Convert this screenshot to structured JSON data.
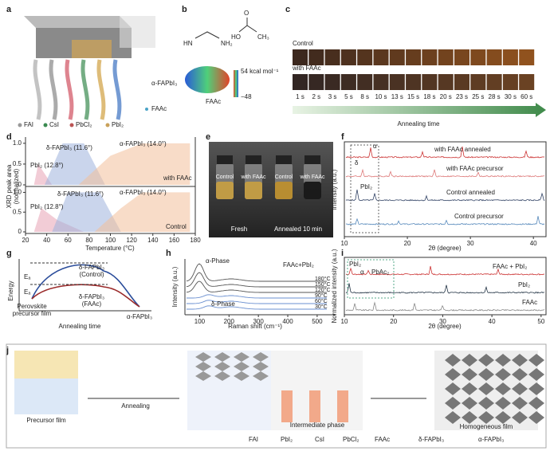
{
  "panel_labels": [
    "a",
    "b",
    "c",
    "d",
    "e",
    "f",
    "g",
    "h",
    "i",
    "j"
  ],
  "a": {
    "legend_top": [
      "α-FAPbI₃",
      "FAAc"
    ],
    "legend_bottom": [
      "FAI",
      "CsI",
      "PbCl₂",
      "PbI₂"
    ]
  },
  "b": {
    "atoms": [
      "HN",
      "NH₂",
      "HO",
      "O",
      "CH₃"
    ],
    "scale_max": "54 kcal mol⁻¹",
    "scale_min": "−48",
    "name": "FAAc"
  },
  "c": {
    "rows": [
      "Control",
      "with FAAc"
    ],
    "times": [
      "1 s",
      "2 s",
      "3 s",
      "5 s",
      "8 s",
      "10 s",
      "13 s",
      "15 s",
      "18 s",
      "20 s",
      "23 s",
      "25 s",
      "28 s",
      "30 s",
      "60 s"
    ],
    "axis_label": "Annealing time"
  },
  "d": {
    "ylabel": [
      "XRD peak area",
      "(normalized)"
    ],
    "xlabel": "Temperature (°C)",
    "xlim": [
      20,
      180
    ],
    "xticks": [
      20,
      40,
      60,
      80,
      100,
      120,
      140,
      160,
      180
    ],
    "ylim": [
      0,
      1.15
    ],
    "yticks": [
      0,
      0.5,
      {
        "value": 1,
        "label": "1.0"
      }
    ],
    "top": {
      "labels": [
        "δ-FAPbI₃ (11.6°)",
        "α-FAPbI₃ (14.0°)",
        "PbI₂ (12.8°)"
      ],
      "name": "with FAAc"
    },
    "bottom": {
      "labels": [
        "δ-FAPbI₃ (11.6°)",
        "α-FAPbI₃ (14.0°)",
        "PbI₂ (12.8°)"
      ],
      "name": "Control"
    }
  },
  "e": {
    "vial_labels": [
      "Control",
      "with FAAc",
      "Control",
      "with FAAc"
    ],
    "captions": [
      "Fresh",
      "Annealed 10 min"
    ]
  },
  "f": {
    "ylabel": "Intensity (a.u.)",
    "xlabel": "2θ (degree)",
    "xlim": [
      10,
      42
    ],
    "xticks": [
      10,
      20,
      30,
      40
    ],
    "curves": [
      "with FAAc annealed",
      "with FAAc precursor",
      "Control annealed",
      "Control precursor"
    ],
    "peaks": [
      "α",
      "δ",
      "PbI₂"
    ]
  },
  "g": {
    "ylabel": "Energy",
    "barriers": [
      "Eₐ",
      "Eₐ"
    ],
    "control": [
      "δ-FAPbI₃",
      "(Control)"
    ],
    "faac": [
      "δ-FAPbI₃",
      "(FAAc)"
    ],
    "start": [
      "Perovskite",
      "precursor film"
    ],
    "end": "α-FAPbI₃",
    "xlabel": "Annealing time"
  },
  "h": {
    "ylabel": "Intensity (a.u.)",
    "xlabel": "Raman shift (cm⁻¹)",
    "xlim": [
      50,
      560
    ],
    "xticks": [
      100,
      200,
      300,
      400,
      500
    ],
    "phases": [
      "α-Phase",
      "δ-Phase"
    ],
    "sample": "FAAc+PbI₂",
    "temperatures": [
      "180°C",
      "150°C",
      "120°C",
      "90°C",
      "60°C",
      "30°C"
    ]
  },
  "i": {
    "ylabel": "Normalized intensity (a.u.)",
    "xlabel": "2θ (degree)",
    "xlim": [
      10,
      51
    ],
    "xticks": [
      10,
      20,
      30,
      40,
      50
    ],
    "curves": [
      "FAAc + PbI₂",
      "PbI₂",
      "FAAc"
    ],
    "peaks": [
      "PbI₂",
      "α",
      "PbAc₂"
    ]
  },
  "j": {
    "stages": [
      "Precursor film",
      "Intermediate phase",
      "Homogeneous film"
    ],
    "step": "Annealing",
    "legend": [
      "FAI",
      "PbI₂",
      "CsI",
      "PbCl₂",
      "FAAc",
      "δ-FAPbI₃",
      "α-FAPbI₃"
    ]
  }
}
